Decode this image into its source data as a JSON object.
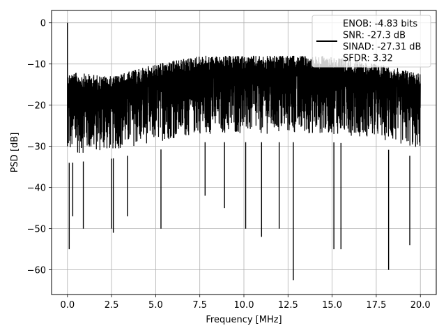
{
  "chart_data": {
    "type": "line",
    "title": "",
    "xlabel": "Frequency [MHz]",
    "ylabel": "PSD [dB]",
    "xlim": [
      -0.9,
      20.9
    ],
    "ylim": [
      -66,
      3
    ],
    "x_ticks": [
      0.0,
      2.5,
      5.0,
      7.5,
      10.0,
      12.5,
      15.0,
      17.5,
      20.0
    ],
    "x_tick_labels": [
      "0.0",
      "2.5",
      "5.0",
      "7.5",
      "10.0",
      "12.5",
      "15.0",
      "17.5",
      "20.0"
    ],
    "y_ticks": [
      0,
      -10,
      -20,
      -30,
      -40,
      -50,
      -60
    ],
    "y_tick_labels": [
      "0",
      "−10",
      "−20",
      "−30",
      "−40",
      "−50",
      "−60"
    ],
    "grid": true,
    "legend_position": "top-right",
    "series": [
      {
        "color": "#000000",
        "peak": {
          "x": 0.0,
          "y": 0
        },
        "x_range": [
          0.0,
          20.0
        ],
        "upper_envelope": {
          "x": [
            0.2,
            2.5,
            5.0,
            7.5,
            10.0,
            12.5,
            15.0,
            17.5,
            20.0
          ],
          "y": [
            -12,
            -13,
            -10,
            -8,
            -8,
            -8,
            -8,
            -10,
            -12
          ]
        },
        "lower_envelope": {
          "x": [
            0.2,
            2.5,
            5.0,
            7.5,
            10.0,
            12.5,
            15.0,
            17.5,
            20.0
          ],
          "y": [
            -38,
            -37,
            -35,
            -33,
            -33,
            -33,
            -33,
            -34,
            -37
          ]
        },
        "dips": [
          {
            "x": 0.1,
            "y": -55
          },
          {
            "x": 0.3,
            "y": -47
          },
          {
            "x": 0.9,
            "y": -50
          },
          {
            "x": 2.5,
            "y": -50
          },
          {
            "x": 2.6,
            "y": -51
          },
          {
            "x": 3.4,
            "y": -47
          },
          {
            "x": 5.3,
            "y": -50
          },
          {
            "x": 7.8,
            "y": -42
          },
          {
            "x": 8.9,
            "y": -45
          },
          {
            "x": 10.1,
            "y": -50
          },
          {
            "x": 11.0,
            "y": -52
          },
          {
            "x": 12.0,
            "y": -50
          },
          {
            "x": 12.8,
            "y": -62.5
          },
          {
            "x": 15.1,
            "y": -55
          },
          {
            "x": 15.5,
            "y": -55
          },
          {
            "x": 18.2,
            "y": -60
          },
          {
            "x": 19.4,
            "y": -54
          }
        ]
      }
    ],
    "legend": {
      "lines": [
        "ENOB: -4.83 bits",
        "SNR: -27.3 dB",
        "SINAD: -27.31 dB",
        "SFDR: 3.32"
      ]
    }
  }
}
